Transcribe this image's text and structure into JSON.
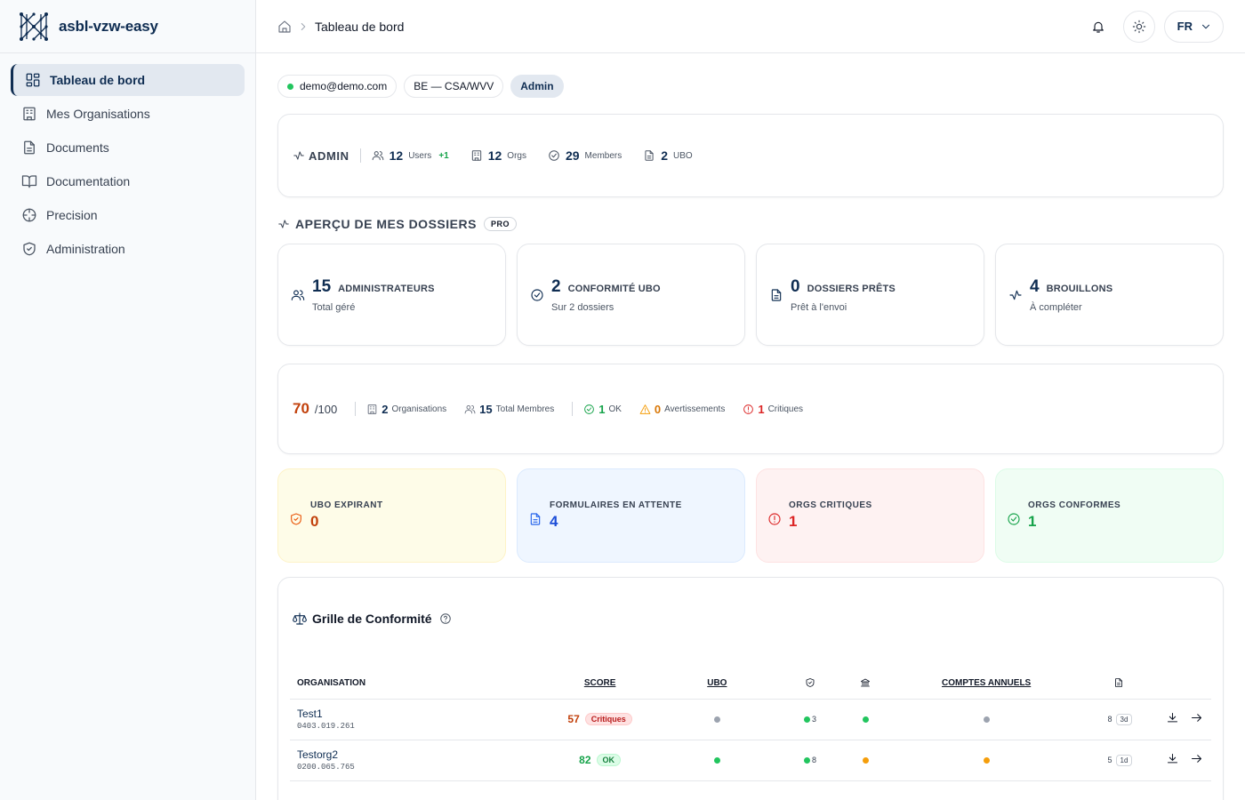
{
  "brand": {
    "name": "asbl-vzw-easy"
  },
  "sidebar": {
    "items": [
      {
        "label": "Tableau de bord",
        "icon": "dashboard-icon",
        "active": true
      },
      {
        "label": "Mes Organisations",
        "icon": "building-icon"
      },
      {
        "label": "Documents",
        "icon": "document-icon"
      },
      {
        "label": "Documentation",
        "icon": "book-icon"
      },
      {
        "label": "Precision",
        "icon": "crosshair-icon"
      },
      {
        "label": "Administration",
        "icon": "shield-icon"
      }
    ]
  },
  "header": {
    "breadcrumb_current": "Tableau de bord",
    "lang": "FR"
  },
  "pills": {
    "email": "demo@demo.com",
    "jurisdiction": "BE — CSA/WVV",
    "role": "Admin"
  },
  "admin_stats": {
    "role_label": "ADMIN",
    "users_count": "12",
    "users_label": "Users",
    "users_delta": "+1",
    "orgs_count": "12",
    "orgs_label": "Orgs",
    "members_count": "29",
    "members_label": "Members",
    "ubo_count": "2",
    "ubo_label": "UBO"
  },
  "overview": {
    "title": "APERÇU DE MES DOSSIERS",
    "badge": "PRO",
    "kpis": [
      {
        "value": "15",
        "label": "ADMINISTRATEURS",
        "sub": "Total géré",
        "icon": "users-icon"
      },
      {
        "value": "2",
        "label": "CONFORMITÉ UBO",
        "sub": "Sur 2 dossiers",
        "icon": "check-circle-icon"
      },
      {
        "value": "0",
        "label": "DOSSIERS PRÊTS",
        "sub": "Prêt à l'envoi",
        "icon": "document-icon"
      },
      {
        "value": "4",
        "label": "BROUILLONS",
        "sub": "À compléter",
        "icon": "activity-icon"
      }
    ]
  },
  "score": {
    "value": "70",
    "max": "/100",
    "orgs_count": "2",
    "orgs_label": "Organisations",
    "members_count": "15",
    "members_label": "Total Membres",
    "ok_count": "1",
    "ok_label": "OK",
    "warn_count": "0",
    "warn_label": "Avertissements",
    "crit_count": "1",
    "crit_label": "Critiques"
  },
  "alerts": [
    {
      "label": "UBO EXPIRANT",
      "value": "0",
      "color": "#c2410c",
      "icon": "shield-icon"
    },
    {
      "label": "FORMULAIRES EN ATTENTE",
      "value": "4",
      "color": "#1d4ed8",
      "icon": "document-icon"
    },
    {
      "label": "ORGS CRITIQUES",
      "value": "1",
      "color": "#dc2626",
      "icon": "alert-circle-icon"
    },
    {
      "label": "ORGS CONFORMES",
      "value": "1",
      "color": "#16a34a",
      "icon": "check-circle-icon"
    }
  ],
  "grid": {
    "title": "Grille de Conformité",
    "columns": {
      "organisation": "ORGANISATION",
      "score": "SCORE",
      "ubo": "UBO",
      "comptes": "COMPTES ANNUELS"
    },
    "rows": [
      {
        "name": "Test1",
        "number": "0403.019.261",
        "score": "57",
        "score_color": "#c2410c",
        "status": "Critiques",
        "status_type": "crit",
        "ubo": "#9ca3af",
        "shield": "#22c55e",
        "shield_count": "3",
        "bank": "#22c55e",
        "comptes": "#9ca3af",
        "docs": "8",
        "docs_age": "3d"
      },
      {
        "name": "Testorg2",
        "number": "0200.065.765",
        "score": "82",
        "score_color": "#16a34a",
        "status": "OK",
        "status_type": "ok",
        "ubo": "#22c55e",
        "shield": "#22c55e",
        "shield_count": "8",
        "bank": "#f59e0b",
        "comptes": "#f59e0b",
        "docs": "5",
        "docs_age": "1d"
      }
    ]
  }
}
